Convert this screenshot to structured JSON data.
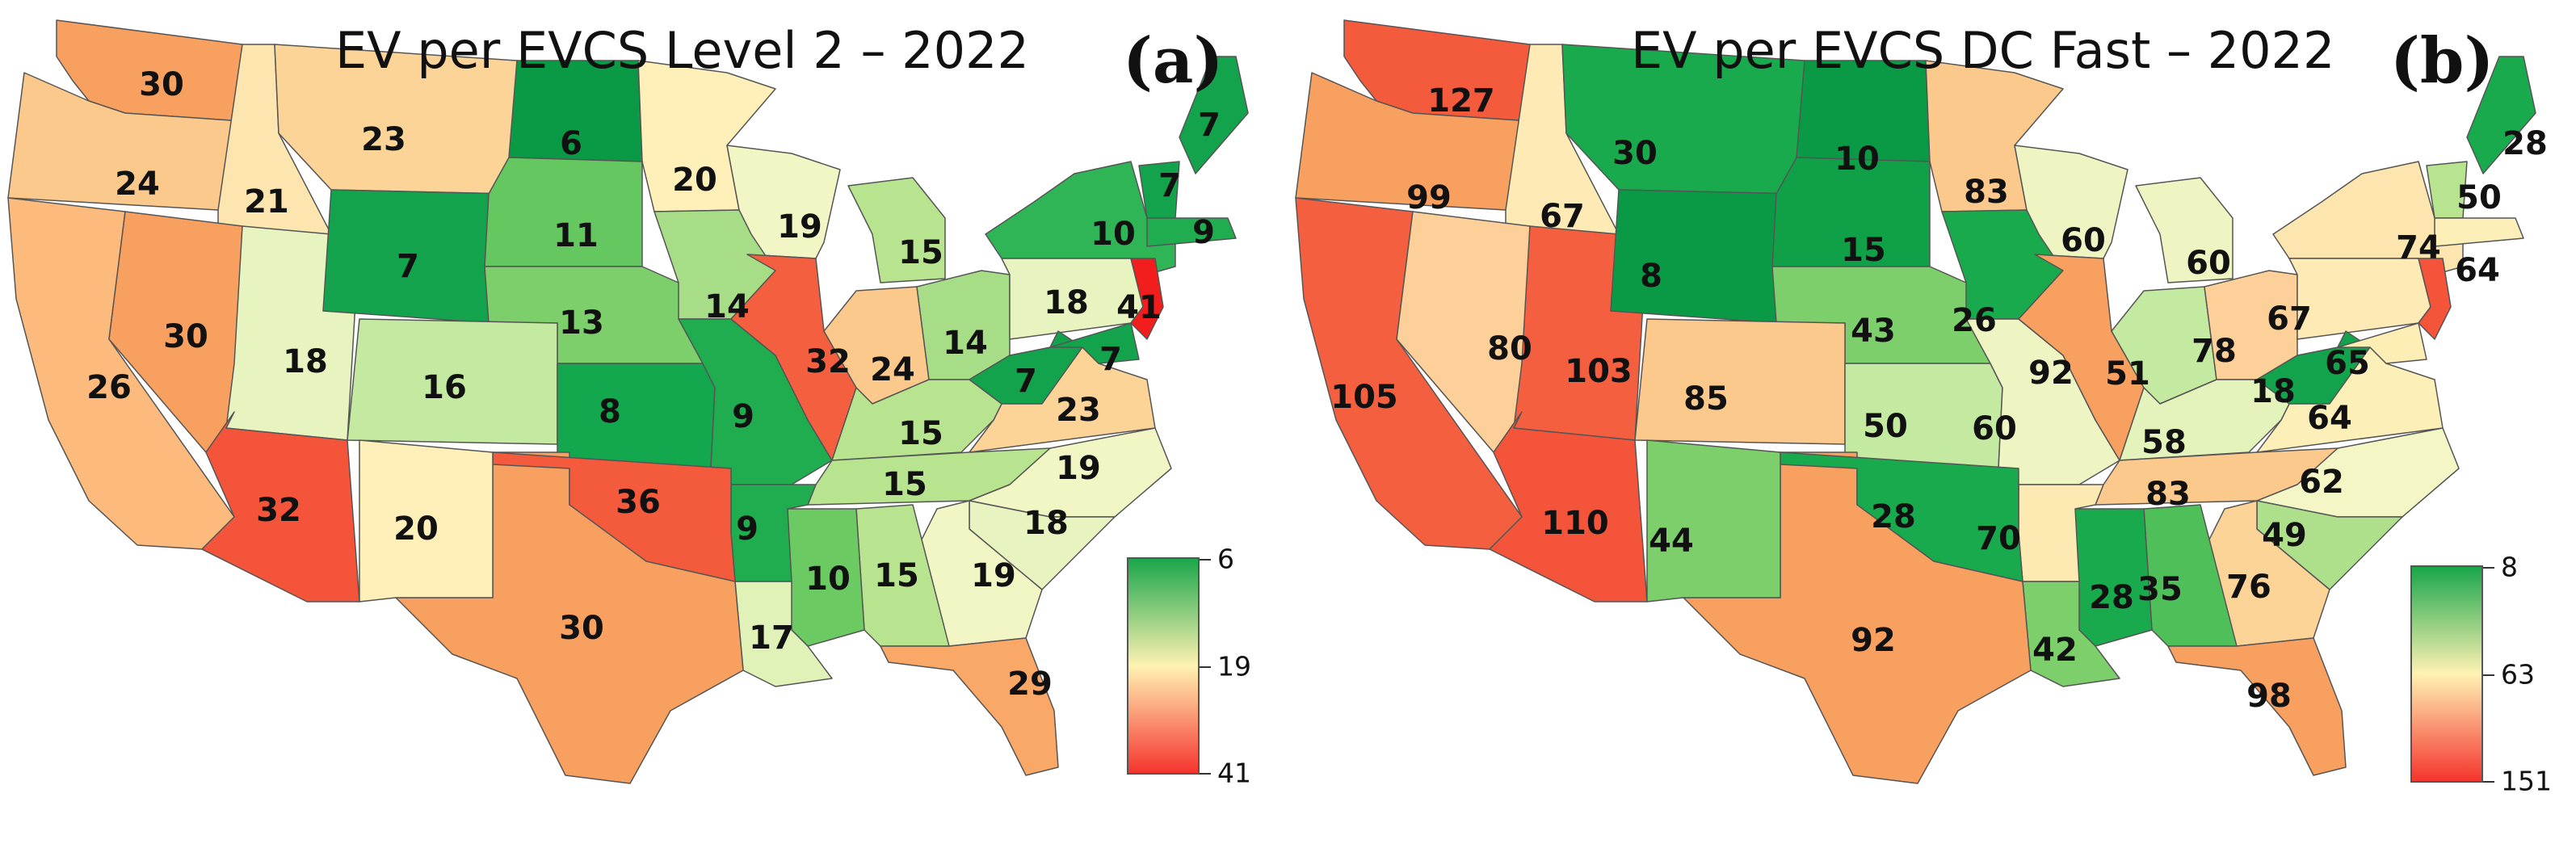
{
  "panels": [
    {
      "id": "a",
      "title": "EV per EVCS Level 2 – 2022",
      "panel_label": "(a)",
      "legend": {
        "min": 6,
        "mid": 19,
        "max": 41,
        "colors_low_mid_high": [
          "#1aa64a",
          "#fff2b3",
          "#f5342e"
        ]
      },
      "states": [
        {
          "state": "WA",
          "value": "30",
          "color": "#f8a060"
        },
        {
          "state": "OR",
          "value": "24",
          "color": "#fcc98c"
        },
        {
          "state": "ID",
          "value": "21",
          "color": "#fde5b0"
        },
        {
          "state": "MT",
          "value": "23",
          "color": "#fcd498"
        },
        {
          "state": "ND",
          "value": "6",
          "color": "#0a9a45"
        },
        {
          "state": "MN",
          "value": "20",
          "color": "#fef0b8"
        },
        {
          "state": "WI",
          "value": "19",
          "color": "#f2f5c4"
        },
        {
          "state": "MI",
          "value": "15",
          "color": "#b8e490"
        },
        {
          "state": "ME",
          "value": "7",
          "color": "#12a34c"
        },
        {
          "state": "VT",
          "value": "7",
          "color": "#12a34c"
        },
        {
          "state": "NY",
          "value": "10",
          "color": "#2fb456"
        },
        {
          "state": "MA",
          "value": "9",
          "color": "#1fad50"
        },
        {
          "state": "CA",
          "value": "26",
          "color": "#fcbb7c"
        },
        {
          "state": "NV",
          "value": "30",
          "color": "#f8a060"
        },
        {
          "state": "UT",
          "value": "18",
          "color": "#e8f4c0"
        },
        {
          "state": "WY",
          "value": "7",
          "color": "#12a34c"
        },
        {
          "state": "SD",
          "value": "11",
          "color": "#64c760"
        },
        {
          "state": "NE",
          "value": "13",
          "color": "#7ccf6a"
        },
        {
          "state": "CO",
          "value": "16",
          "color": "#c4e9a0"
        },
        {
          "state": "KS",
          "value": "8",
          "color": "#14a84e"
        },
        {
          "state": "IA",
          "value": "14",
          "color": "#a8dd88"
        },
        {
          "state": "MO",
          "value": "9",
          "color": "#1fad50"
        },
        {
          "state": "IL",
          "value": "32",
          "color": "#f4603f"
        },
        {
          "state": "IN",
          "value": "24",
          "color": "#fcc98c"
        },
        {
          "state": "OH",
          "value": "14",
          "color": "#a8dd88"
        },
        {
          "state": "PA",
          "value": "18",
          "color": "#e8f4c0"
        },
        {
          "state": "NJ",
          "value": "41",
          "color": "#f21d1d"
        },
        {
          "state": "WV",
          "value": "7",
          "color": "#12a34c"
        },
        {
          "state": "VA",
          "value": "23",
          "color": "#fcd498"
        },
        {
          "state": "MD",
          "value": "7",
          "color": "#12a34c"
        },
        {
          "state": "KY",
          "value": "15",
          "color": "#b8e490"
        },
        {
          "state": "TN",
          "value": "15",
          "color": "#b8e490"
        },
        {
          "state": "NC",
          "value": "19",
          "color": "#f2f5c4"
        },
        {
          "state": "SC",
          "value": "18",
          "color": "#e8f4c0"
        },
        {
          "state": "GA",
          "value": "19",
          "color": "#f2f5c4"
        },
        {
          "state": "AL",
          "value": "15",
          "color": "#b8e490"
        },
        {
          "state": "MS",
          "value": "10",
          "color": "#6cca62"
        },
        {
          "state": "AR",
          "value": "9",
          "color": "#1fad50"
        },
        {
          "state": "LA",
          "value": "17",
          "color": "#e0f2b8"
        },
        {
          "state": "FL",
          "value": "29",
          "color": "#f9a868"
        },
        {
          "state": "TX",
          "value": "30",
          "color": "#f8a060"
        },
        {
          "state": "OK",
          "value": "36",
          "color": "#f45a3c"
        },
        {
          "state": "NM",
          "value": "20",
          "color": "#fef0b8"
        },
        {
          "state": "AZ",
          "value": "32",
          "color": "#f4543a"
        }
      ]
    },
    {
      "id": "b",
      "title": "EV per EVCS DC Fast – 2022",
      "panel_label": "(b)",
      "legend": {
        "min": 8,
        "mid": 63,
        "max": 151,
        "colors_low_mid_high": [
          "#1aa64a",
          "#fff2b3",
          "#f5342e"
        ]
      },
      "states": [
        {
          "state": "WA",
          "value": "127",
          "color": "#f45a3c"
        },
        {
          "state": "OR",
          "value": "99",
          "color": "#f8a060"
        },
        {
          "state": "ID",
          "value": "67",
          "color": "#fdeab4"
        },
        {
          "state": "MT",
          "value": "30",
          "color": "#18aa4c"
        },
        {
          "state": "ND",
          "value": "10",
          "color": "#0a9a45"
        },
        {
          "state": "MN",
          "value": "83",
          "color": "#fcc98c"
        },
        {
          "state": "WI",
          "value": "60",
          "color": "#eef5c2"
        },
        {
          "state": "MI",
          "value": "60",
          "color": "#eef5c2"
        },
        {
          "state": "ME",
          "value": "28",
          "color": "#18aa4c"
        },
        {
          "state": "VT",
          "value": "50",
          "color": "#b8e490"
        },
        {
          "state": "NY",
          "value": "74",
          "color": "#fde5b0"
        },
        {
          "state": "MA",
          "value": "64",
          "color": "#fcefb8"
        },
        {
          "state": "CA",
          "value": "105",
          "color": "#f4603f"
        },
        {
          "state": "NV",
          "value": "80",
          "color": "#fcd098"
        },
        {
          "state": "UT",
          "value": "103",
          "color": "#f4603f"
        },
        {
          "state": "WY",
          "value": "8",
          "color": "#0a9a45"
        },
        {
          "state": "SD",
          "value": "15",
          "color": "#0fa048"
        },
        {
          "state": "NE",
          "value": "43",
          "color": "#7ccf6a"
        },
        {
          "state": "CO",
          "value": "85",
          "color": "#fcc98c"
        },
        {
          "state": "KS",
          "value": "50",
          "color": "#c4e9a0"
        },
        {
          "state": "IA",
          "value": "26",
          "color": "#18aa4c"
        },
        {
          "state": "MO",
          "value": "60",
          "color": "#eef5c2"
        },
        {
          "state": "IL",
          "value": "92",
          "color": "#f8a060"
        },
        {
          "state": "IN",
          "value": "51",
          "color": "#c4e9a0"
        },
        {
          "state": "OH",
          "value": "78",
          "color": "#fcd098"
        },
        {
          "state": "PA",
          "value": "67",
          "color": "#fdeab4"
        },
        {
          "state": "NJ",
          "value": "",
          "color": "#f4543a"
        },
        {
          "state": "WV",
          "value": "18",
          "color": "#12a34c"
        },
        {
          "state": "VA",
          "value": "64",
          "color": "#fcefb8"
        },
        {
          "state": "MD",
          "value": "65",
          "color": "#fdeeb6"
        },
        {
          "state": "KY",
          "value": "58",
          "color": "#e4f3bc"
        },
        {
          "state": "TN",
          "value": "83",
          "color": "#fcc98c"
        },
        {
          "state": "NC",
          "value": "62",
          "color": "#f4f6c6"
        },
        {
          "state": "SC",
          "value": "49",
          "color": "#aee08c"
        },
        {
          "state": "GA",
          "value": "76",
          "color": "#fcd498"
        },
        {
          "state": "AL",
          "value": "35",
          "color": "#4fbf5a"
        },
        {
          "state": "MS",
          "value": "28",
          "color": "#18aa4c"
        },
        {
          "state": "AR",
          "value": "70",
          "color": "#fde9b2"
        },
        {
          "state": "LA",
          "value": "42",
          "color": "#7ccf6a"
        },
        {
          "state": "FL",
          "value": "98",
          "color": "#f8a060"
        },
        {
          "state": "TX",
          "value": "92",
          "color": "#f8a060"
        },
        {
          "state": "OK",
          "value": "28",
          "color": "#18aa4c"
        },
        {
          "state": "NM",
          "value": "44",
          "color": "#7ccf6a"
        },
        {
          "state": "AZ",
          "value": "110",
          "color": "#f4543a"
        }
      ]
    }
  ]
}
